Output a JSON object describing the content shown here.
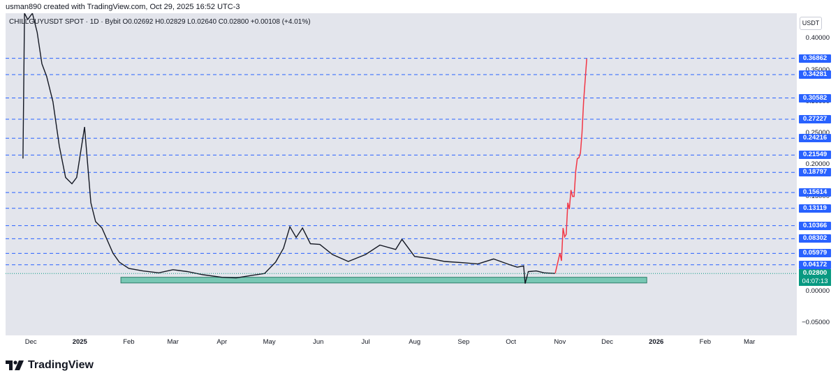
{
  "header": {
    "attribution": "usman890 created with TradingView.com, Oct 29, 2025 16:52 UTC-3"
  },
  "symbol_bar": {
    "text": "CHILLGUYUSDT SPOT · 1D · Bybit  O0.02692  H0.02829  L0.02640  C0.02800  +0.00108 (+4.01%)"
  },
  "currency": "USDT",
  "price_axis": {
    "plain_ticks": [
      "0.40000",
      "0.35000",
      "0.30000",
      "0.25000",
      "0.20000",
      "0.15000",
      "0.00000",
      "−0.05000"
    ],
    "tagged_levels": [
      "0.36862",
      "0.34281",
      "0.30582",
      "0.27227",
      "0.24216",
      "0.21549",
      "0.18797",
      "0.15614",
      "0.13119",
      "0.10366",
      "0.08302",
      "0.05979",
      "0.04172"
    ],
    "current_price": "0.02800",
    "countdown": "04:07:13"
  },
  "time_axis": [
    "Dec",
    "2025",
    "Feb",
    "Mar",
    "Apr",
    "May",
    "Jun",
    "Jul",
    "Aug",
    "Sep",
    "Oct",
    "Nov",
    "Dec",
    "2026",
    "Feb",
    "Mar"
  ],
  "colors": {
    "level_line": "#2962ff",
    "support_zone": "#5cbfa6",
    "projection": "#f23645",
    "candle": "#131722",
    "current": "#089981"
  },
  "chart_data": {
    "type": "line",
    "title": "CHILLGUYUSDT SPOT · 1D · Bybit",
    "ylim": [
      -0.07,
      0.44
    ],
    "x_range": [
      "2024-11-15",
      "2026-03-31"
    ],
    "horizontal_levels": [
      0.36862,
      0.34281,
      0.30582,
      0.27227,
      0.24216,
      0.21549,
      0.18797,
      0.15614,
      0.13119,
      0.10366,
      0.08302,
      0.05979,
      0.04172
    ],
    "support_zone": {
      "x": [
        "2025-01-27",
        "2025-12-26"
      ],
      "y": [
        0.013,
        0.022
      ]
    },
    "series": [
      {
        "x": [
          "2024-11-26",
          "2024-11-27",
          "2024-11-29",
          "2024-12-02",
          "2024-12-05",
          "2024-12-08",
          "2024-12-11",
          "2024-12-15",
          "2024-12-19",
          "2024-12-23",
          "2024-12-27",
          "2024-12-30",
          "2025-01-04",
          "2025-01-08",
          "2025-01-11",
          "2025-01-15",
          "2025-01-18",
          "2025-01-22",
          "2025-01-26",
          "2025-02-01",
          "2025-02-10",
          "2025-02-20",
          "2025-03-01",
          "2025-03-10",
          "2025-03-20",
          "2025-04-01",
          "2025-04-10",
          "2025-04-20",
          "2025-04-28",
          "2025-05-05",
          "2025-05-10",
          "2025-05-14",
          "2025-05-18",
          "2025-05-22",
          "2025-05-27",
          "2025-06-02",
          "2025-06-10",
          "2025-06-20",
          "2025-07-01",
          "2025-07-10",
          "2025-07-20",
          "2025-07-24",
          "2025-08-01",
          "2025-08-10",
          "2025-08-20",
          "2025-09-01",
          "2025-09-10",
          "2025-09-20",
          "2025-09-30",
          "2025-10-05",
          "2025-10-09",
          "2025-10-10",
          "2025-10-12",
          "2025-10-17",
          "2025-10-22",
          "2025-10-29"
        ],
        "y": [
          0.21,
          0.44,
          0.43,
          0.45,
          0.41,
          0.36,
          0.34,
          0.3,
          0.23,
          0.18,
          0.17,
          0.18,
          0.26,
          0.14,
          0.11,
          0.1,
          0.083,
          0.06,
          0.046,
          0.036,
          0.032,
          0.029,
          0.034,
          0.031,
          0.026,
          0.022,
          0.021,
          0.025,
          0.028,
          0.046,
          0.068,
          0.102,
          0.085,
          0.1,
          0.075,
          0.074,
          0.058,
          0.047,
          0.058,
          0.073,
          0.066,
          0.082,
          0.055,
          0.052,
          0.047,
          0.045,
          0.043,
          0.051,
          0.042,
          0.038,
          0.04,
          0.012,
          0.031,
          0.032,
          0.029,
          0.028
        ]
      },
      {
        "x": [
          "2025-10-29",
          "2025-11-01",
          "2025-11-02",
          "2025-11-03",
          "2025-11-04",
          "2025-11-05",
          "2025-11-06",
          "2025-11-07",
          "2025-11-08",
          "2025-11-09",
          "2025-11-10",
          "2025-11-11",
          "2025-11-12",
          "2025-11-13",
          "2025-11-14",
          "2025-11-15",
          "2025-11-16",
          "2025-11-18"
        ],
        "y": [
          0.028,
          0.06,
          0.048,
          0.1,
          0.086,
          0.09,
          0.14,
          0.13,
          0.16,
          0.15,
          0.15,
          0.19,
          0.21,
          0.211,
          0.219,
          0.25,
          0.3,
          0.368
        ]
      }
    ]
  }
}
